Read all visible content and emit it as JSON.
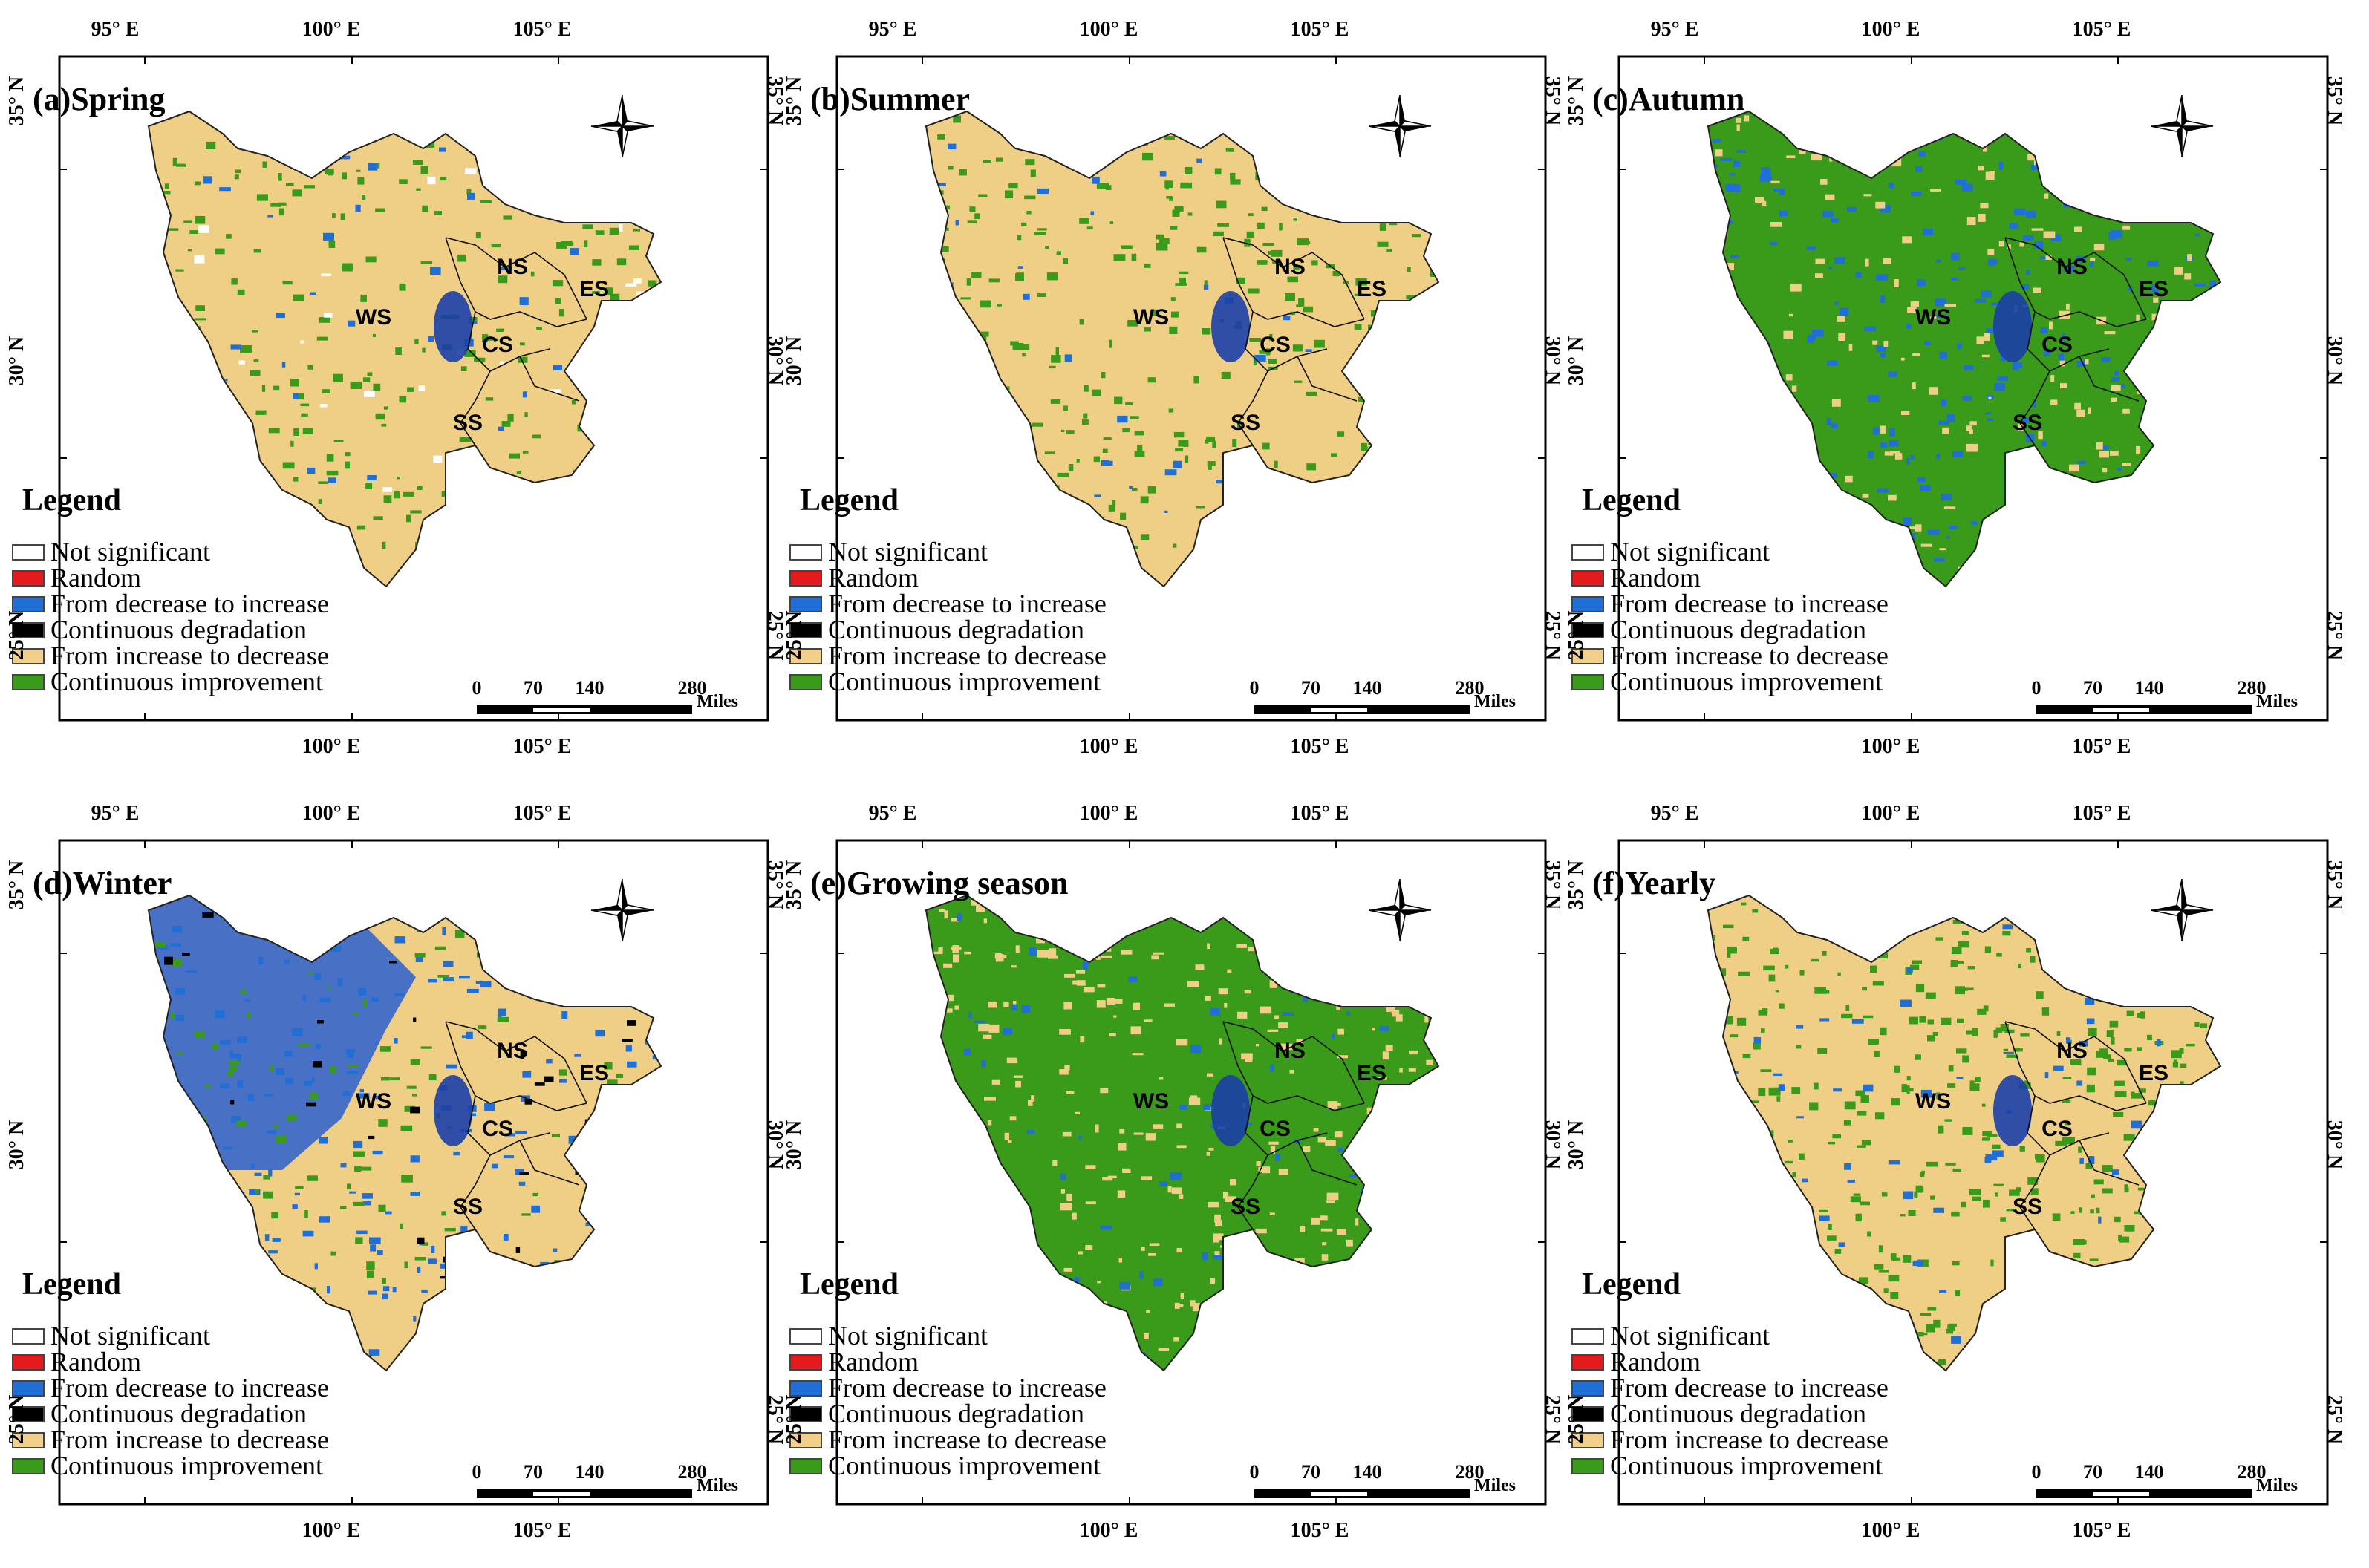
{
  "legend": {
    "title": "Legend",
    "items": [
      {
        "label": "Not significant",
        "color": "#ffffff"
      },
      {
        "label": "Random",
        "color": "#e41a1c"
      },
      {
        "label": "From decrease to increase",
        "color": "#1f6fd6"
      },
      {
        "label": "Continuous degradation",
        "color": "#000000"
      },
      {
        "label": "From increase to decrease",
        "color": "#f2d08a"
      },
      {
        "label": "Continuous improvement",
        "color": "#3a9a1a"
      }
    ]
  },
  "axes": {
    "top_ticks": [
      "95° E",
      "100° E",
      "105° E"
    ],
    "bottom_ticks": [
      "100° E",
      "105° E"
    ],
    "side_ticks": [
      "35° N",
      "30° N",
      "25° N"
    ]
  },
  "scale_bar": {
    "labels": [
      "0",
      "70",
      "140",
      "280"
    ],
    "unit": "Miles"
  },
  "north_arrow": "N",
  "regions": [
    "WS",
    "NS",
    "ES",
    "CS",
    "SS"
  ],
  "panels": [
    {
      "title": "(a)Spring",
      "map": {
        "base": "#efcf85",
        "mix": [
          [
            "#3a9a1a",
            0.35
          ],
          [
            "#1f6fd6",
            0.05
          ],
          [
            "#ffffff",
            0.04
          ]
        ],
        "nw": "#efcf85"
      }
    },
    {
      "title": "(b)Summer",
      "map": {
        "base": "#efcf85",
        "mix": [
          [
            "#3a9a1a",
            0.42
          ],
          [
            "#1f6fd6",
            0.05
          ]
        ],
        "nw": "#efcf85"
      }
    },
    {
      "title": "(c)Autumn",
      "map": {
        "base": "#3a9a1a",
        "mix": [
          [
            "#1f6fd6",
            0.3
          ],
          [
            "#efcf85",
            0.25
          ]
        ],
        "nw": "#3a9a1a"
      }
    },
    {
      "title": "(d)Winter",
      "map": {
        "base": "#efcf85",
        "mix": [
          [
            "#1f6fd6",
            0.25
          ],
          [
            "#3a9a1a",
            0.18
          ],
          [
            "#000000",
            0.05
          ]
        ],
        "nw": "#2a5fd0"
      }
    },
    {
      "title": "(e)Growing season",
      "map": {
        "base": "#3a9a1a",
        "mix": [
          [
            "#efcf85",
            0.4
          ],
          [
            "#1f6fd6",
            0.1
          ]
        ],
        "nw": "#3a9a1a"
      }
    },
    {
      "title": "(f)Yearly",
      "map": {
        "base": "#efcf85",
        "mix": [
          [
            "#3a9a1a",
            0.5
          ],
          [
            "#1f6fd6",
            0.07
          ]
        ],
        "nw": "#efcf85"
      }
    }
  ]
}
